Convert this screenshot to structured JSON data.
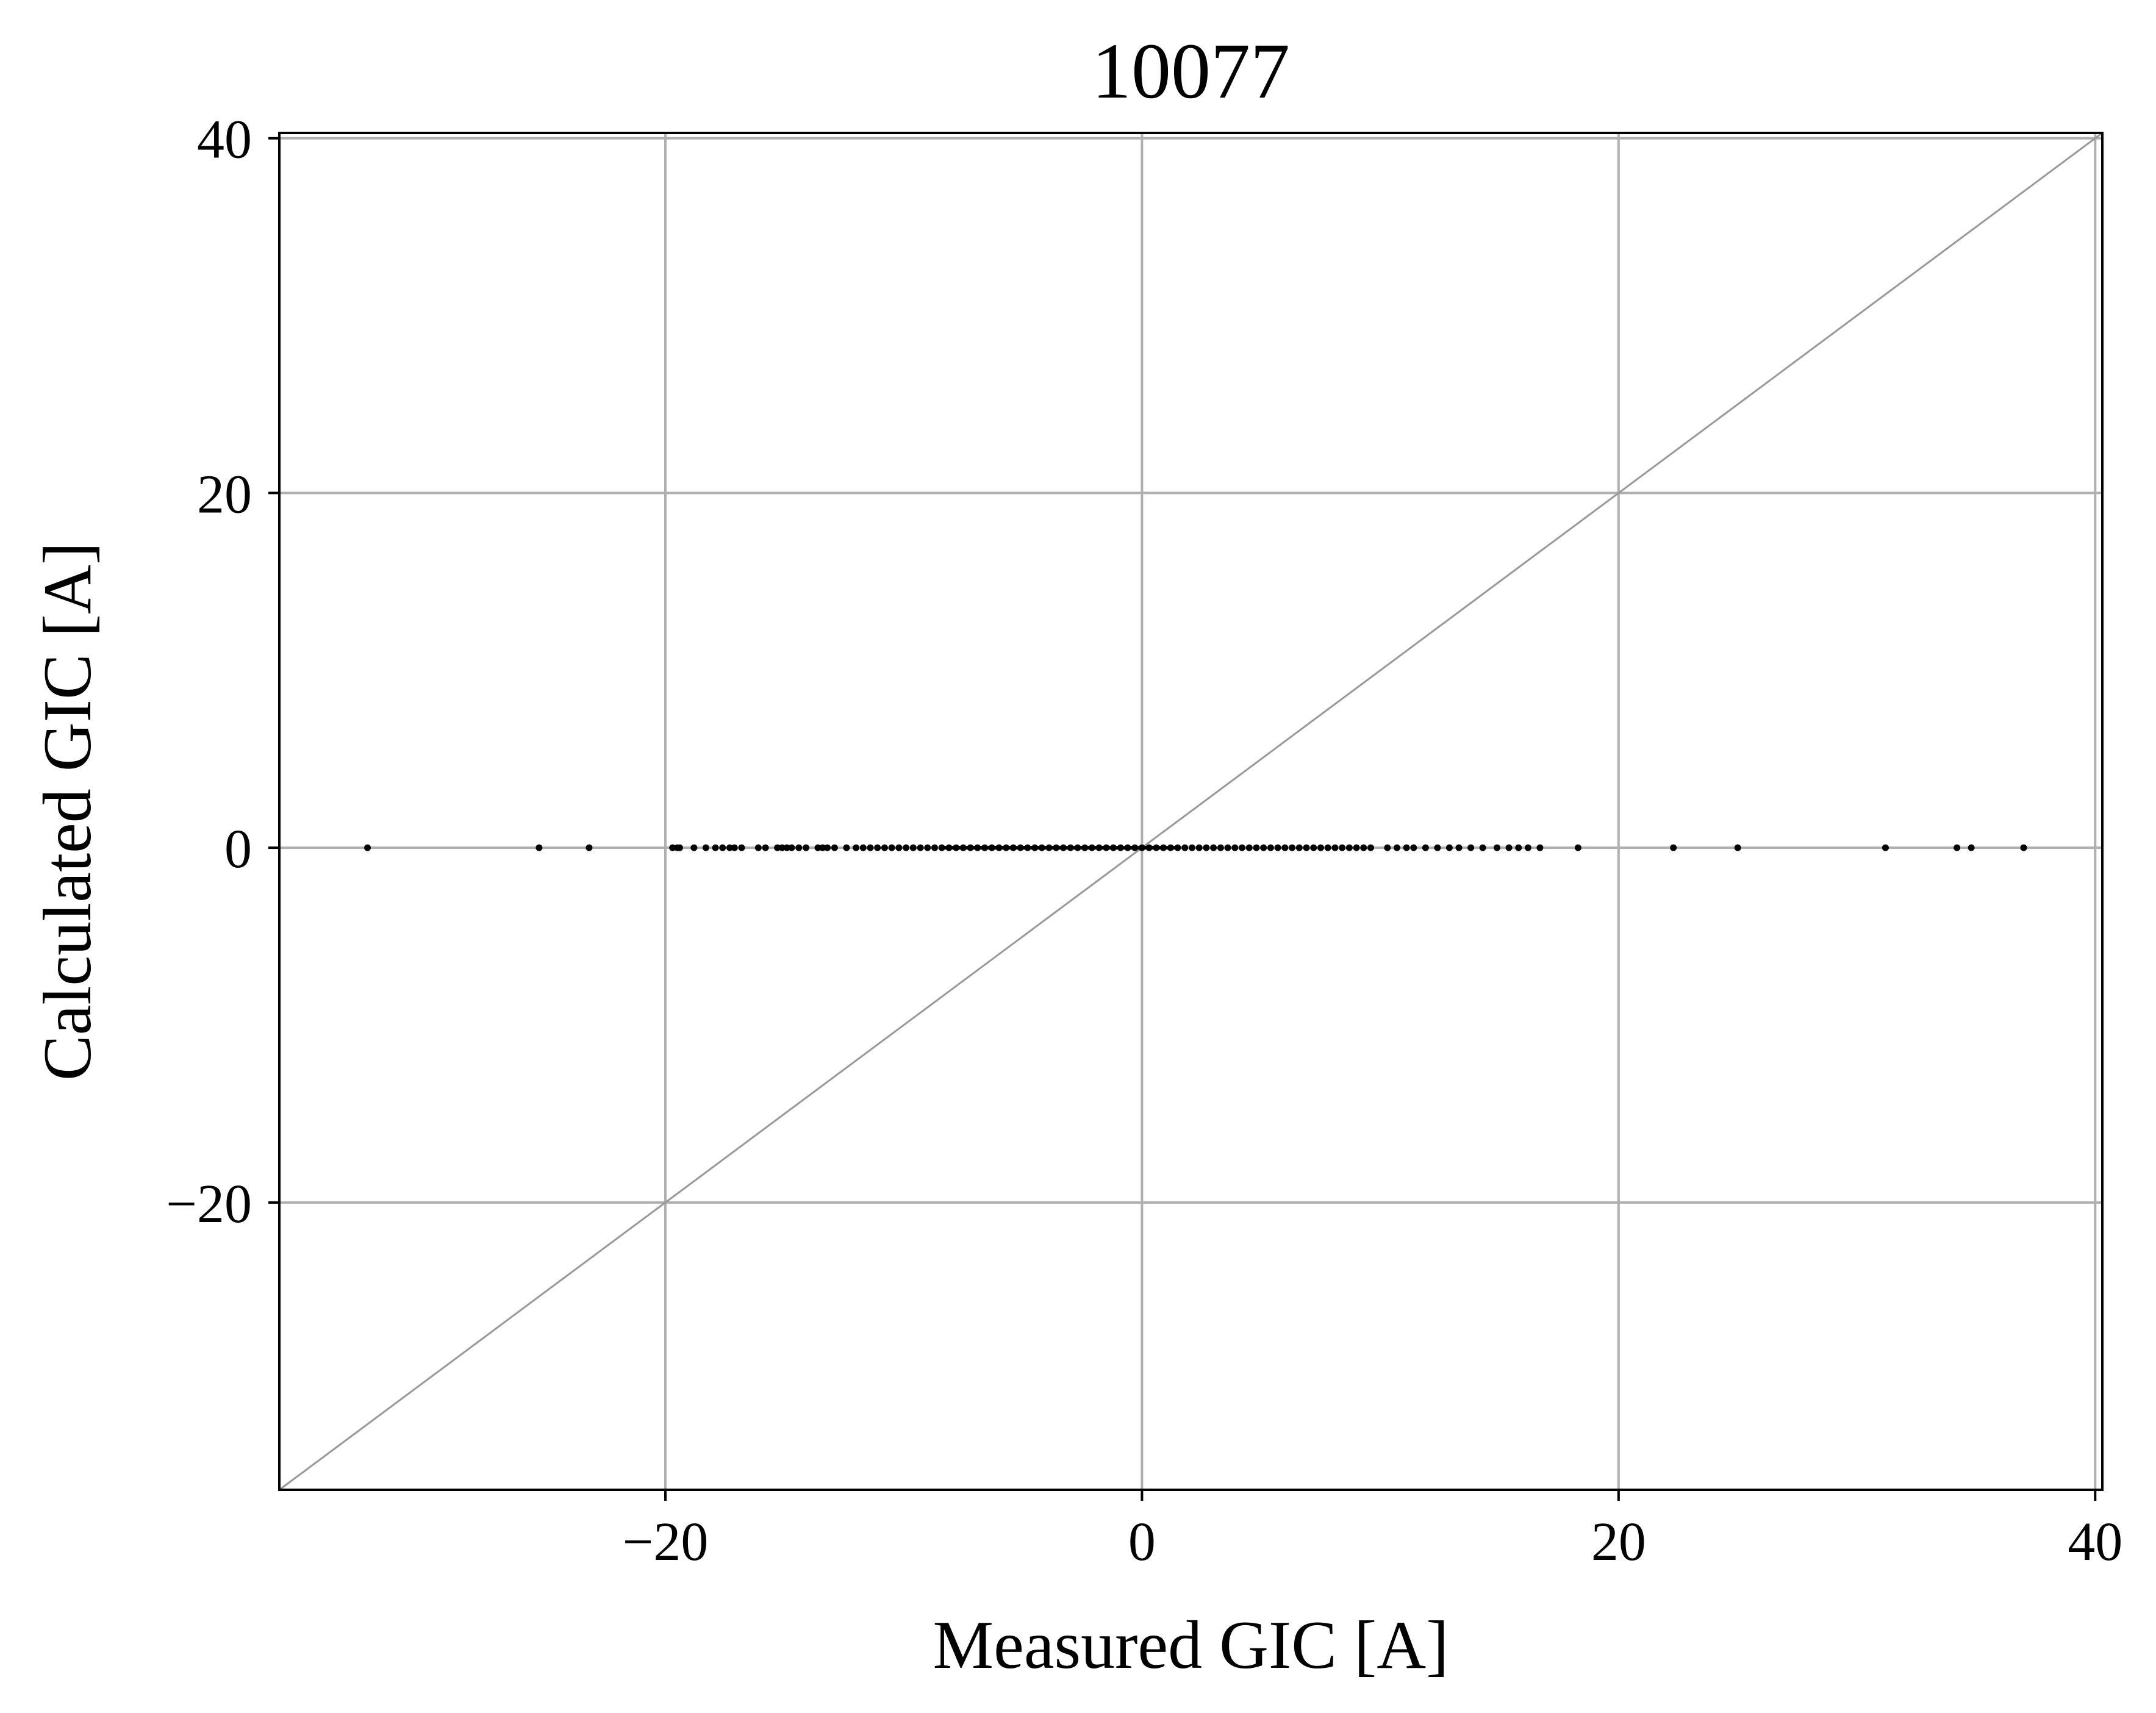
{
  "chart_data": {
    "type": "scatter",
    "title": "10077",
    "xlabel": "Measured GIC [A]",
    "ylabel": "Calculated GIC [A]",
    "xlim": [
      -36.2,
      40.3
    ],
    "ylim": [
      -36.2,
      40.3
    ],
    "xticks": [
      -20,
      0,
      20,
      40
    ],
    "yticks": [
      -20,
      0,
      20,
      40
    ],
    "xtick_labels": [
      "−20",
      "0",
      "20",
      "40"
    ],
    "ytick_labels": [
      "−20",
      "0",
      "20",
      "40"
    ],
    "grid": true,
    "reference_line": {
      "label": "",
      "slope": 1,
      "intercept": 0,
      "color": "#999999"
    },
    "colors": {
      "points": "#000000",
      "grid": "#b0b0b0",
      "axes": "#000000"
    },
    "series": [
      {
        "name": "",
        "x": [
          -32.5,
          -25.3,
          -23.2,
          -19.7,
          -19.5,
          -19.4,
          -18.8,
          -18.3,
          -17.9,
          -17.6,
          -17.3,
          -17.1,
          -16.8,
          -16.1,
          -15.8,
          -15.3,
          -15.1,
          -14.9,
          -14.7,
          -14.4,
          -14.1,
          -13.6,
          -13.4,
          -13.2,
          -12.9,
          -12.4,
          -12.0,
          -11.7,
          -11.4,
          -11.1,
          -10.8,
          -10.5,
          -10.2,
          -9.9,
          -9.6,
          -9.3,
          -9.0,
          -8.7,
          -8.4,
          -8.1,
          -7.8,
          -7.5,
          -7.2,
          -6.9,
          -6.6,
          -6.3,
          -6.0,
          -5.7,
          -5.4,
          -5.1,
          -4.8,
          -4.5,
          -4.2,
          -3.9,
          -3.6,
          -3.3,
          -3.0,
          -2.7,
          -2.4,
          -2.1,
          -1.8,
          -1.5,
          -1.2,
          -0.9,
          -0.6,
          -0.3,
          0.0,
          0.3,
          0.6,
          0.9,
          1.2,
          1.5,
          1.8,
          2.1,
          2.4,
          2.7,
          3.0,
          3.3,
          3.6,
          3.9,
          4.2,
          4.5,
          4.8,
          5.1,
          5.4,
          5.7,
          6.0,
          6.3,
          6.6,
          6.9,
          7.2,
          7.5,
          7.8,
          8.1,
          8.4,
          8.7,
          9.0,
          9.3,
          9.6,
          10.3,
          10.7,
          11.1,
          11.4,
          11.9,
          12.4,
          12.9,
          13.3,
          13.8,
          14.3,
          14.9,
          15.4,
          15.8,
          16.2,
          16.7,
          18.3,
          22.3,
          25.0,
          31.2,
          34.2,
          34.8,
          37.0
        ],
        "y": [
          0,
          0,
          0,
          0,
          0,
          0,
          0,
          0,
          0,
          0,
          0,
          0,
          0,
          0,
          0,
          0,
          0,
          0,
          0,
          0,
          0,
          0,
          0,
          0,
          0,
          0,
          0,
          0,
          0,
          0,
          0,
          0,
          0,
          0,
          0,
          0,
          0,
          0,
          0,
          0,
          0,
          0,
          0,
          0,
          0,
          0,
          0,
          0,
          0,
          0,
          0,
          0,
          0,
          0,
          0,
          0,
          0,
          0,
          0,
          0,
          0,
          0,
          0,
          0,
          0,
          0,
          0,
          0,
          0,
          0,
          0,
          0,
          0,
          0,
          0,
          0,
          0,
          0,
          0,
          0,
          0,
          0,
          0,
          0,
          0,
          0,
          0,
          0,
          0,
          0,
          0,
          0,
          0,
          0,
          0,
          0,
          0,
          0,
          0,
          0,
          0,
          0,
          0,
          0,
          0,
          0,
          0,
          0,
          0,
          0,
          0,
          0,
          0,
          0,
          0,
          0,
          0,
          0,
          0,
          0,
          0
        ]
      }
    ]
  }
}
